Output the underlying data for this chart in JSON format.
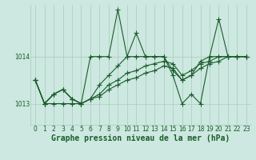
{
  "title": "Graphe pression niveau de la mer (hPa)",
  "bg_color": "#cce8e0",
  "line_color": "#1a5c2a",
  "grid_color": "#aaccbb",
  "xlim_min": -0.5,
  "xlim_max": 23.5,
  "ylim_min": 1012.55,
  "ylim_max": 1015.1,
  "yticks": [
    1013,
    1014
  ],
  "xticks": [
    0,
    1,
    2,
    3,
    4,
    5,
    6,
    7,
    8,
    9,
    10,
    11,
    12,
    13,
    14,
    15,
    16,
    17,
    18,
    19,
    20,
    21,
    22,
    23
  ],
  "series": [
    [
      1013.5,
      1013.0,
      1013.0,
      1013.0,
      1013.0,
      1013.0,
      1014.0,
      1014.0,
      1014.0,
      1015.0,
      1014.0,
      1014.5,
      1014.0,
      1014.0,
      1014.0,
      1013.6,
      1013.0,
      1013.2,
      1013.0,
      1014.0,
      1014.8,
      1014.0,
      1014.0,
      1014.0
    ],
    [
      1013.5,
      1013.0,
      1013.2,
      1013.3,
      1013.1,
      1013.0,
      1013.1,
      1013.4,
      1013.6,
      1013.8,
      1014.0,
      1014.0,
      1014.0,
      1014.0,
      1014.0,
      1013.7,
      1013.5,
      1013.6,
      1013.9,
      1014.0,
      1014.0,
      1014.0,
      1014.0,
      1014.0
    ],
    [
      1013.5,
      1013.0,
      1013.2,
      1013.3,
      1013.1,
      1013.0,
      1013.1,
      1013.2,
      1013.4,
      1013.5,
      1013.65,
      1013.7,
      1013.8,
      1013.85,
      1013.9,
      1013.85,
      1013.6,
      1013.7,
      1013.85,
      1013.9,
      1014.0,
      1014.0,
      1014.0,
      1014.0
    ],
    [
      1013.5,
      1013.0,
      1013.2,
      1013.3,
      1013.1,
      1013.0,
      1013.1,
      1013.15,
      1013.3,
      1013.4,
      1013.5,
      1013.55,
      1013.65,
      1013.7,
      1013.8,
      1013.75,
      1013.5,
      1013.6,
      1013.75,
      1013.85,
      1013.9,
      1014.0,
      1014.0,
      1014.0
    ]
  ],
  "marker": "+",
  "markersize": 4,
  "linewidth": 0.8,
  "title_fontsize": 7,
  "tick_fontsize": 5.5
}
